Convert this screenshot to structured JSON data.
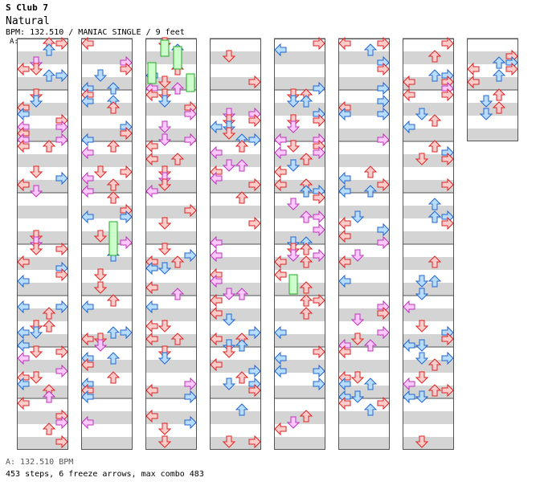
{
  "header": {
    "artist": "S Club 7",
    "title": "Natural",
    "meta": "BPM: 132.510 / MANIAC SINGLE / 9 feet",
    "marker": "A:"
  },
  "footer": {
    "bpm_line": "A: 132.510 BPM",
    "stats_line": "453 steps, 6 freeze arrows, max combo 483"
  },
  "colors": {
    "red_fill": "#ffcccc",
    "red_stroke": "#dd2222",
    "blue_fill": "#b8dcff",
    "blue_stroke": "#2266cc",
    "pink_fill": "#ffc8ff",
    "pink_stroke": "#bb33bb",
    "freeze_fill": "#ccffcc",
    "freeze_stroke": "#22aa22",
    "stripe": "#d4d4d4",
    "border": "#555555"
  },
  "icons": {
    "left": "left-arrow-icon",
    "down": "down-arrow-icon",
    "up": "up-arrow-icon",
    "right": "right-arrow-icon"
  }
}
